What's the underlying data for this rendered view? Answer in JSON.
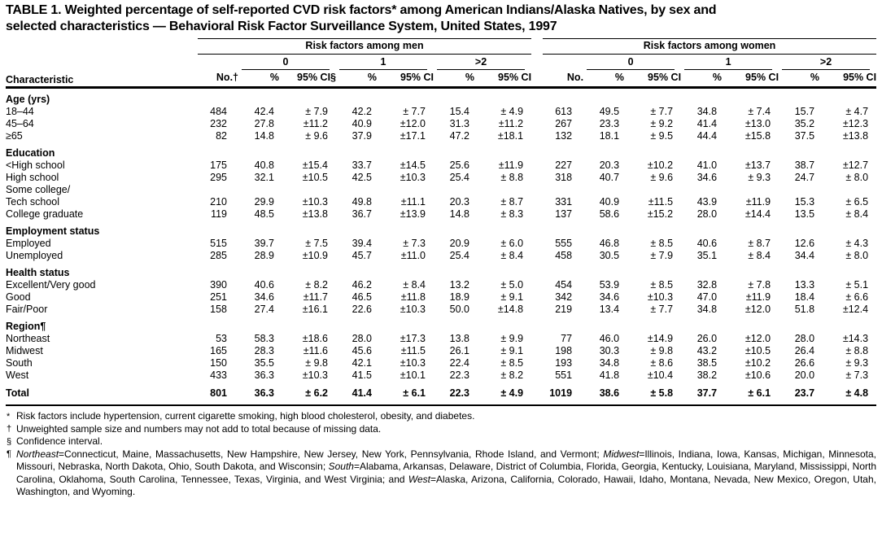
{
  "title": {
    "line1": "TABLE 1. Weighted percentage of self-reported CVD risk factors* among American Indians/Alaska Natives, by sex and",
    "line2": "selected characteristics — Behavioral Risk Factor Surveillance System, United States, 1997"
  },
  "header": {
    "characteristic": "Characteristic",
    "men_spanner": "Risk factors among men",
    "women_spanner": "Risk factors among women",
    "men_no": "No.†",
    "women_no": "No.",
    "groups": [
      "0",
      "1",
      ">2"
    ],
    "pct_label": "%",
    "ci_label_first": "95% CI§",
    "ci_label": "95% CI"
  },
  "rows": [
    {
      "type": "section",
      "indent": 0,
      "label": "Age (yrs)"
    },
    {
      "type": "data",
      "indent": 1,
      "label": "18–44",
      "men": [
        "484",
        "42.4",
        "± 7.9",
        "42.2",
        "± 7.7",
        "15.4",
        "± 4.9"
      ],
      "women": [
        "613",
        "49.5",
        "± 7.7",
        "34.8",
        "± 7.4",
        "15.7",
        "± 4.7"
      ]
    },
    {
      "type": "data",
      "indent": 1,
      "label": "45–64",
      "men": [
        "232",
        "27.8",
        "±11.2",
        "40.9",
        "±12.0",
        "31.3",
        "±11.2"
      ],
      "women": [
        "267",
        "23.3",
        "± 9.2",
        "41.4",
        "±13.0",
        "35.2",
        "±12.3"
      ]
    },
    {
      "type": "data",
      "indent": 2,
      "label": "≥65",
      "men": [
        "82",
        "14.8",
        "± 9.6",
        "37.9",
        "±17.1",
        "47.2",
        "±18.1"
      ],
      "women": [
        "132",
        "18.1",
        "± 9.5",
        "44.4",
        "±15.8",
        "37.5",
        "±13.8"
      ]
    },
    {
      "type": "section",
      "indent": 0,
      "label": "Education"
    },
    {
      "type": "data",
      "indent": 1,
      "label": "<High school",
      "men": [
        "175",
        "40.8",
        "±15.4",
        "33.7",
        "±14.5",
        "25.6",
        "±11.9"
      ],
      "women": [
        "227",
        "20.3",
        "±10.2",
        "41.0",
        "±13.7",
        "38.7",
        "±12.7"
      ]
    },
    {
      "type": "data",
      "indent": 1,
      "label": "High school",
      "men": [
        "295",
        "32.1",
        "±10.5",
        "42.5",
        "±10.3",
        "25.4",
        "± 8.8"
      ],
      "women": [
        "318",
        "40.7",
        "± 9.6",
        "34.6",
        "± 9.3",
        "24.7",
        "± 8.0"
      ]
    },
    {
      "type": "label",
      "indent": 1,
      "label": "Some college/"
    },
    {
      "type": "data",
      "indent": 2,
      "label": "Tech school",
      "men": [
        "210",
        "29.9",
        "±10.3",
        "49.8",
        "±11.1",
        "20.3",
        "± 8.7"
      ],
      "women": [
        "331",
        "40.9",
        "±11.5",
        "43.9",
        "±11.9",
        "15.3",
        "± 6.5"
      ]
    },
    {
      "type": "data",
      "indent": 1,
      "label": "College graduate",
      "men": [
        "119",
        "48.5",
        "±13.8",
        "36.7",
        "±13.9",
        "14.8",
        "± 8.3"
      ],
      "women": [
        "137",
        "58.6",
        "±15.2",
        "28.0",
        "±14.4",
        "13.5",
        "± 8.4"
      ]
    },
    {
      "type": "section",
      "indent": 0,
      "label": "Employment status"
    },
    {
      "type": "data",
      "indent": 1,
      "label": "Employed",
      "men": [
        "515",
        "39.7",
        "± 7.5",
        "39.4",
        "± 7.3",
        "20.9",
        "± 6.0"
      ],
      "women": [
        "555",
        "46.8",
        "± 8.5",
        "40.6",
        "± 8.7",
        "12.6",
        "± 4.3"
      ]
    },
    {
      "type": "data",
      "indent": 1,
      "label": "Unemployed",
      "men": [
        "285",
        "28.9",
        "±10.9",
        "45.7",
        "±11.0",
        "25.4",
        "± 8.4"
      ],
      "women": [
        "458",
        "30.5",
        "± 7.9",
        "35.1",
        "± 8.4",
        "34.4",
        "± 8.0"
      ]
    },
    {
      "type": "section",
      "indent": 0,
      "label": "Health status"
    },
    {
      "type": "data",
      "indent": 1,
      "label": "Excellent/Very good",
      "men": [
        "390",
        "40.6",
        "± 8.2",
        "46.2",
        "± 8.4",
        "13.2",
        "± 5.0"
      ],
      "women": [
        "454",
        "53.9",
        "± 8.5",
        "32.8",
        "± 7.8",
        "13.3",
        "± 5.1"
      ]
    },
    {
      "type": "data",
      "indent": 1,
      "label": "Good",
      "men": [
        "251",
        "34.6",
        "±11.7",
        "46.5",
        "±11.8",
        "18.9",
        "± 9.1"
      ],
      "women": [
        "342",
        "34.6",
        "±10.3",
        "47.0",
        "±11.9",
        "18.4",
        "± 6.6"
      ]
    },
    {
      "type": "data",
      "indent": 1,
      "label": "Fair/Poor",
      "men": [
        "158",
        "27.4",
        "±16.1",
        "22.6",
        "±10.3",
        "50.0",
        "±14.8"
      ],
      "women": [
        "219",
        "13.4",
        "± 7.7",
        "34.8",
        "±12.0",
        "51.8",
        "±12.4"
      ]
    },
    {
      "type": "section",
      "indent": 0,
      "label": "Region¶"
    },
    {
      "type": "data",
      "indent": 1,
      "label": "Northeast",
      "men": [
        "53",
        "58.3",
        "±18.6",
        "28.0",
        "±17.3",
        "13.8",
        "± 9.9"
      ],
      "women": [
        "77",
        "46.0",
        "±14.9",
        "26.0",
        "±12.0",
        "28.0",
        "±14.3"
      ]
    },
    {
      "type": "data",
      "indent": 1,
      "label": "Midwest",
      "men": [
        "165",
        "28.3",
        "±11.6",
        "45.6",
        "±11.5",
        "26.1",
        "± 9.1"
      ],
      "women": [
        "198",
        "30.3",
        "± 9.8",
        "43.2",
        "±10.5",
        "26.4",
        "± 8.8"
      ]
    },
    {
      "type": "data",
      "indent": 1,
      "label": "South",
      "men": [
        "150",
        "35.5",
        "± 9.8",
        "42.1",
        "±10.3",
        "22.4",
        "± 8.5"
      ],
      "women": [
        "193",
        "34.8",
        "± 8.6",
        "38.5",
        "±10.2",
        "26.6",
        "± 9.3"
      ]
    },
    {
      "type": "data",
      "indent": 1,
      "label": "West",
      "men": [
        "433",
        "36.3",
        "±10.3",
        "41.5",
        "±10.1",
        "22.3",
        "± 8.2"
      ],
      "women": [
        "551",
        "41.8",
        "±10.4",
        "38.2",
        "±10.6",
        "20.0",
        "± 7.3"
      ]
    },
    {
      "type": "total",
      "indent": 0,
      "label": "Total",
      "men": [
        "801",
        "36.3",
        "± 6.2",
        "41.4",
        "± 6.1",
        "22.3",
        "± 4.9"
      ],
      "women": [
        "1019",
        "38.6",
        "± 5.8",
        "37.7",
        "± 6.1",
        "23.7",
        "± 4.8"
      ]
    }
  ],
  "footnotes": [
    {
      "marker": "*",
      "segments": [
        {
          "t": "Risk factors include hypertension, current cigarette smoking, high blood cholesterol, obesity, and diabetes.",
          "i": false
        }
      ]
    },
    {
      "marker": "†",
      "segments": [
        {
          "t": "Unweighted sample size and numbers may not add to total because of missing data.",
          "i": false
        }
      ]
    },
    {
      "marker": "§",
      "segments": [
        {
          "t": "Confidence interval.",
          "i": false
        }
      ]
    },
    {
      "marker": "¶",
      "segments": [
        {
          "t": "Northeast",
          "i": true
        },
        {
          "t": "=Connecticut, Maine, Massachusetts, New Hampshire, New Jersey, New York, Pennsylvania, Rhode Island, and Vermont; ",
          "i": false
        },
        {
          "t": "Midwest",
          "i": true
        },
        {
          "t": "=Illinois, Indiana, Iowa, Kansas, Michigan, Minnesota, Missouri, Nebraska, North Dakota, Ohio, South Dakota, and Wisconsin; ",
          "i": false
        },
        {
          "t": "South",
          "i": true
        },
        {
          "t": "=Alabama, Arkansas, Delaware, District of Columbia, Florida, Georgia, Kentucky, Louisiana, Maryland, Mississippi, North Carolina, Oklahoma, South Carolina, Tennessee, Texas, Virginia, and West Virginia; and ",
          "i": false
        },
        {
          "t": "West",
          "i": true
        },
        {
          "t": "=Alaska, Arizona, California, Colorado, Hawaii, Idaho, Montana, Nevada, New Mexico, Oregon, Utah, Washington, and Wyoming.",
          "i": false
        }
      ]
    }
  ]
}
